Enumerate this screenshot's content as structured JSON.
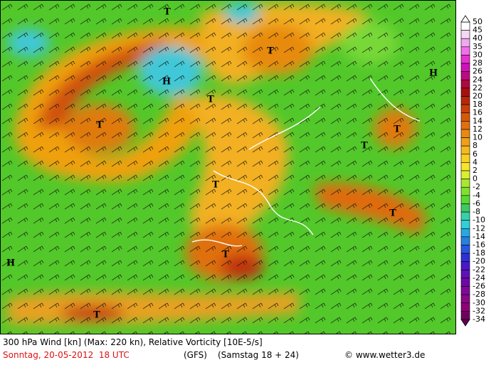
{
  "map": {
    "pressure_centers": [
      "T",
      "T",
      "T",
      "T",
      "T",
      "T",
      "T",
      "T",
      "T",
      "T",
      "H",
      "H",
      "H"
    ],
    "colorbar_labels": [
      "50",
      "45",
      "40",
      "35",
      "30",
      "28",
      "26",
      "24",
      "22",
      "20",
      "18",
      "16",
      "14",
      "12",
      "10",
      "8",
      "6",
      "4",
      "2",
      "0",
      "-2",
      "-4",
      "-6",
      "-8",
      "-10",
      "-12",
      "-14",
      "-16",
      "-18",
      "-20",
      "-22",
      "-24",
      "-26",
      "-28",
      "-30",
      "-32",
      "-34"
    ]
  },
  "footer": {
    "title": "300 hPa Wind [kn] (Max: 220 kn), Relative Vorticity [10E-5/s]",
    "date": "Sonntag, 20-05-2012  18 UTC",
    "model": "(GFS)",
    "run": "(Samstag 18 + 24)",
    "credit": "© www.wetter3.de"
  }
}
